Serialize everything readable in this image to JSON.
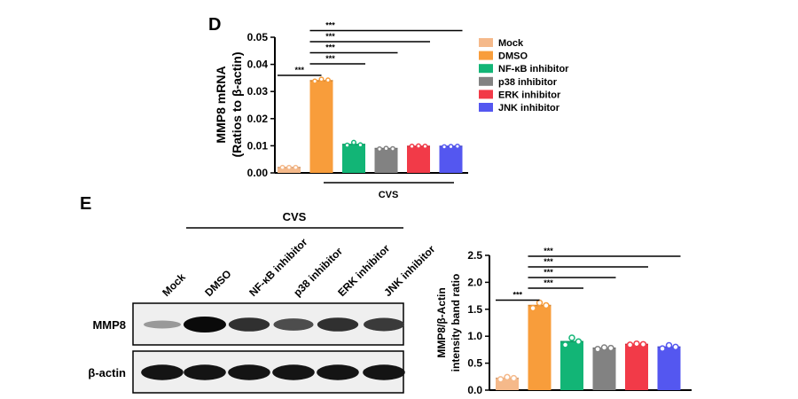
{
  "panels": {
    "d_label": "D",
    "e_label": "E"
  },
  "colors": {
    "Mock": "#f5b98a",
    "DMSO": "#f89d3b",
    "NF-κB inhibitor": "#12b576",
    "p38 inhibitor": "#828282",
    "ERK inhibitor": "#f23a48",
    "JNK inhibitor": "#5457f0"
  },
  "legend": {
    "position": "right",
    "items": [
      "Mock",
      "DMSO",
      "NF-κB inhibitor",
      "p38 inhibitor",
      "ERK inhibitor",
      "JNK inhibitor"
    ]
  },
  "chart_data": [
    {
      "type": "bar",
      "panel": "D",
      "ylabel_line1": "MMP8 mRNA",
      "ylabel_line2": "(Ratios to β-actin)",
      "categories": [
        "Mock",
        "DMSO",
        "NF-κB inhibitor",
        "p38 inhibitor",
        "ERK inhibitor",
        "JNK inhibitor"
      ],
      "values": [
        0.002,
        0.034,
        0.0105,
        0.009,
        0.0098,
        0.0098
      ],
      "points": [
        [
          0.002,
          0.002,
          0.002
        ],
        [
          0.0338,
          0.0345,
          0.0342
        ],
        [
          0.0102,
          0.0112,
          0.0103
        ],
        [
          0.0088,
          0.009,
          0.0089
        ],
        [
          0.0098,
          0.0099,
          0.0098
        ],
        [
          0.0096,
          0.0097,
          0.0098
        ]
      ],
      "ylim": [
        0,
        0.05
      ],
      "yticks": [
        "0.00",
        "0.01",
        "0.02",
        "0.03",
        "0.04",
        "0.05"
      ],
      "group_label": "CVS",
      "significance": [
        {
          "from": 0,
          "to": 1,
          "label": "***"
        },
        {
          "from": 1,
          "to": 2,
          "label": "***"
        },
        {
          "from": 1,
          "to": 3,
          "label": "***"
        },
        {
          "from": 1,
          "to": 4,
          "label": "***"
        },
        {
          "from": 1,
          "to": 5,
          "label": "***"
        }
      ]
    },
    {
      "type": "bar",
      "panel": "E",
      "ylabel_line1": "MMP8/β-Actin",
      "ylabel_line2": "intensity band ratio",
      "categories": [
        "Mock",
        "DMSO",
        "NF-κB inhibitor",
        "p38 inhibitor",
        "ERK inhibitor",
        "JNK inhibitor"
      ],
      "values": [
        0.22,
        1.57,
        0.9,
        0.78,
        0.85,
        0.8
      ],
      "points": [
        [
          0.2,
          0.24,
          0.22
        ],
        [
          1.52,
          1.62,
          1.57
        ],
        [
          0.84,
          0.97,
          0.9
        ],
        [
          0.76,
          0.79,
          0.78
        ],
        [
          0.84,
          0.86,
          0.85
        ],
        [
          0.77,
          0.83,
          0.8
        ]
      ],
      "ylim": [
        0,
        2.5
      ],
      "yticks": [
        "0.0",
        "0.5",
        "1.0",
        "1.5",
        "2.0",
        "2.5"
      ],
      "significance": [
        {
          "from": 0,
          "to": 1,
          "label": "***"
        },
        {
          "from": 1,
          "to": 2,
          "label": "***"
        },
        {
          "from": 1,
          "to": 3,
          "label": "***"
        },
        {
          "from": 1,
          "to": 4,
          "label": "***"
        },
        {
          "from": 1,
          "to": 5,
          "label": "***"
        }
      ]
    }
  ],
  "blot": {
    "group_label": "CVS",
    "lanes": [
      "Mock",
      "DMSO",
      "NF-κB inhibitor",
      "p38  inhibitor",
      "ERK inhibitor",
      "JNK inhibitor"
    ],
    "rows": [
      {
        "label": "MMP8",
        "intensity": [
          0.25,
          1.0,
          0.8,
          0.65,
          0.8,
          0.75
        ]
      },
      {
        "label": "β-actin",
        "intensity": [
          0.95,
          0.95,
          0.95,
          0.95,
          0.95,
          0.95
        ]
      }
    ]
  }
}
